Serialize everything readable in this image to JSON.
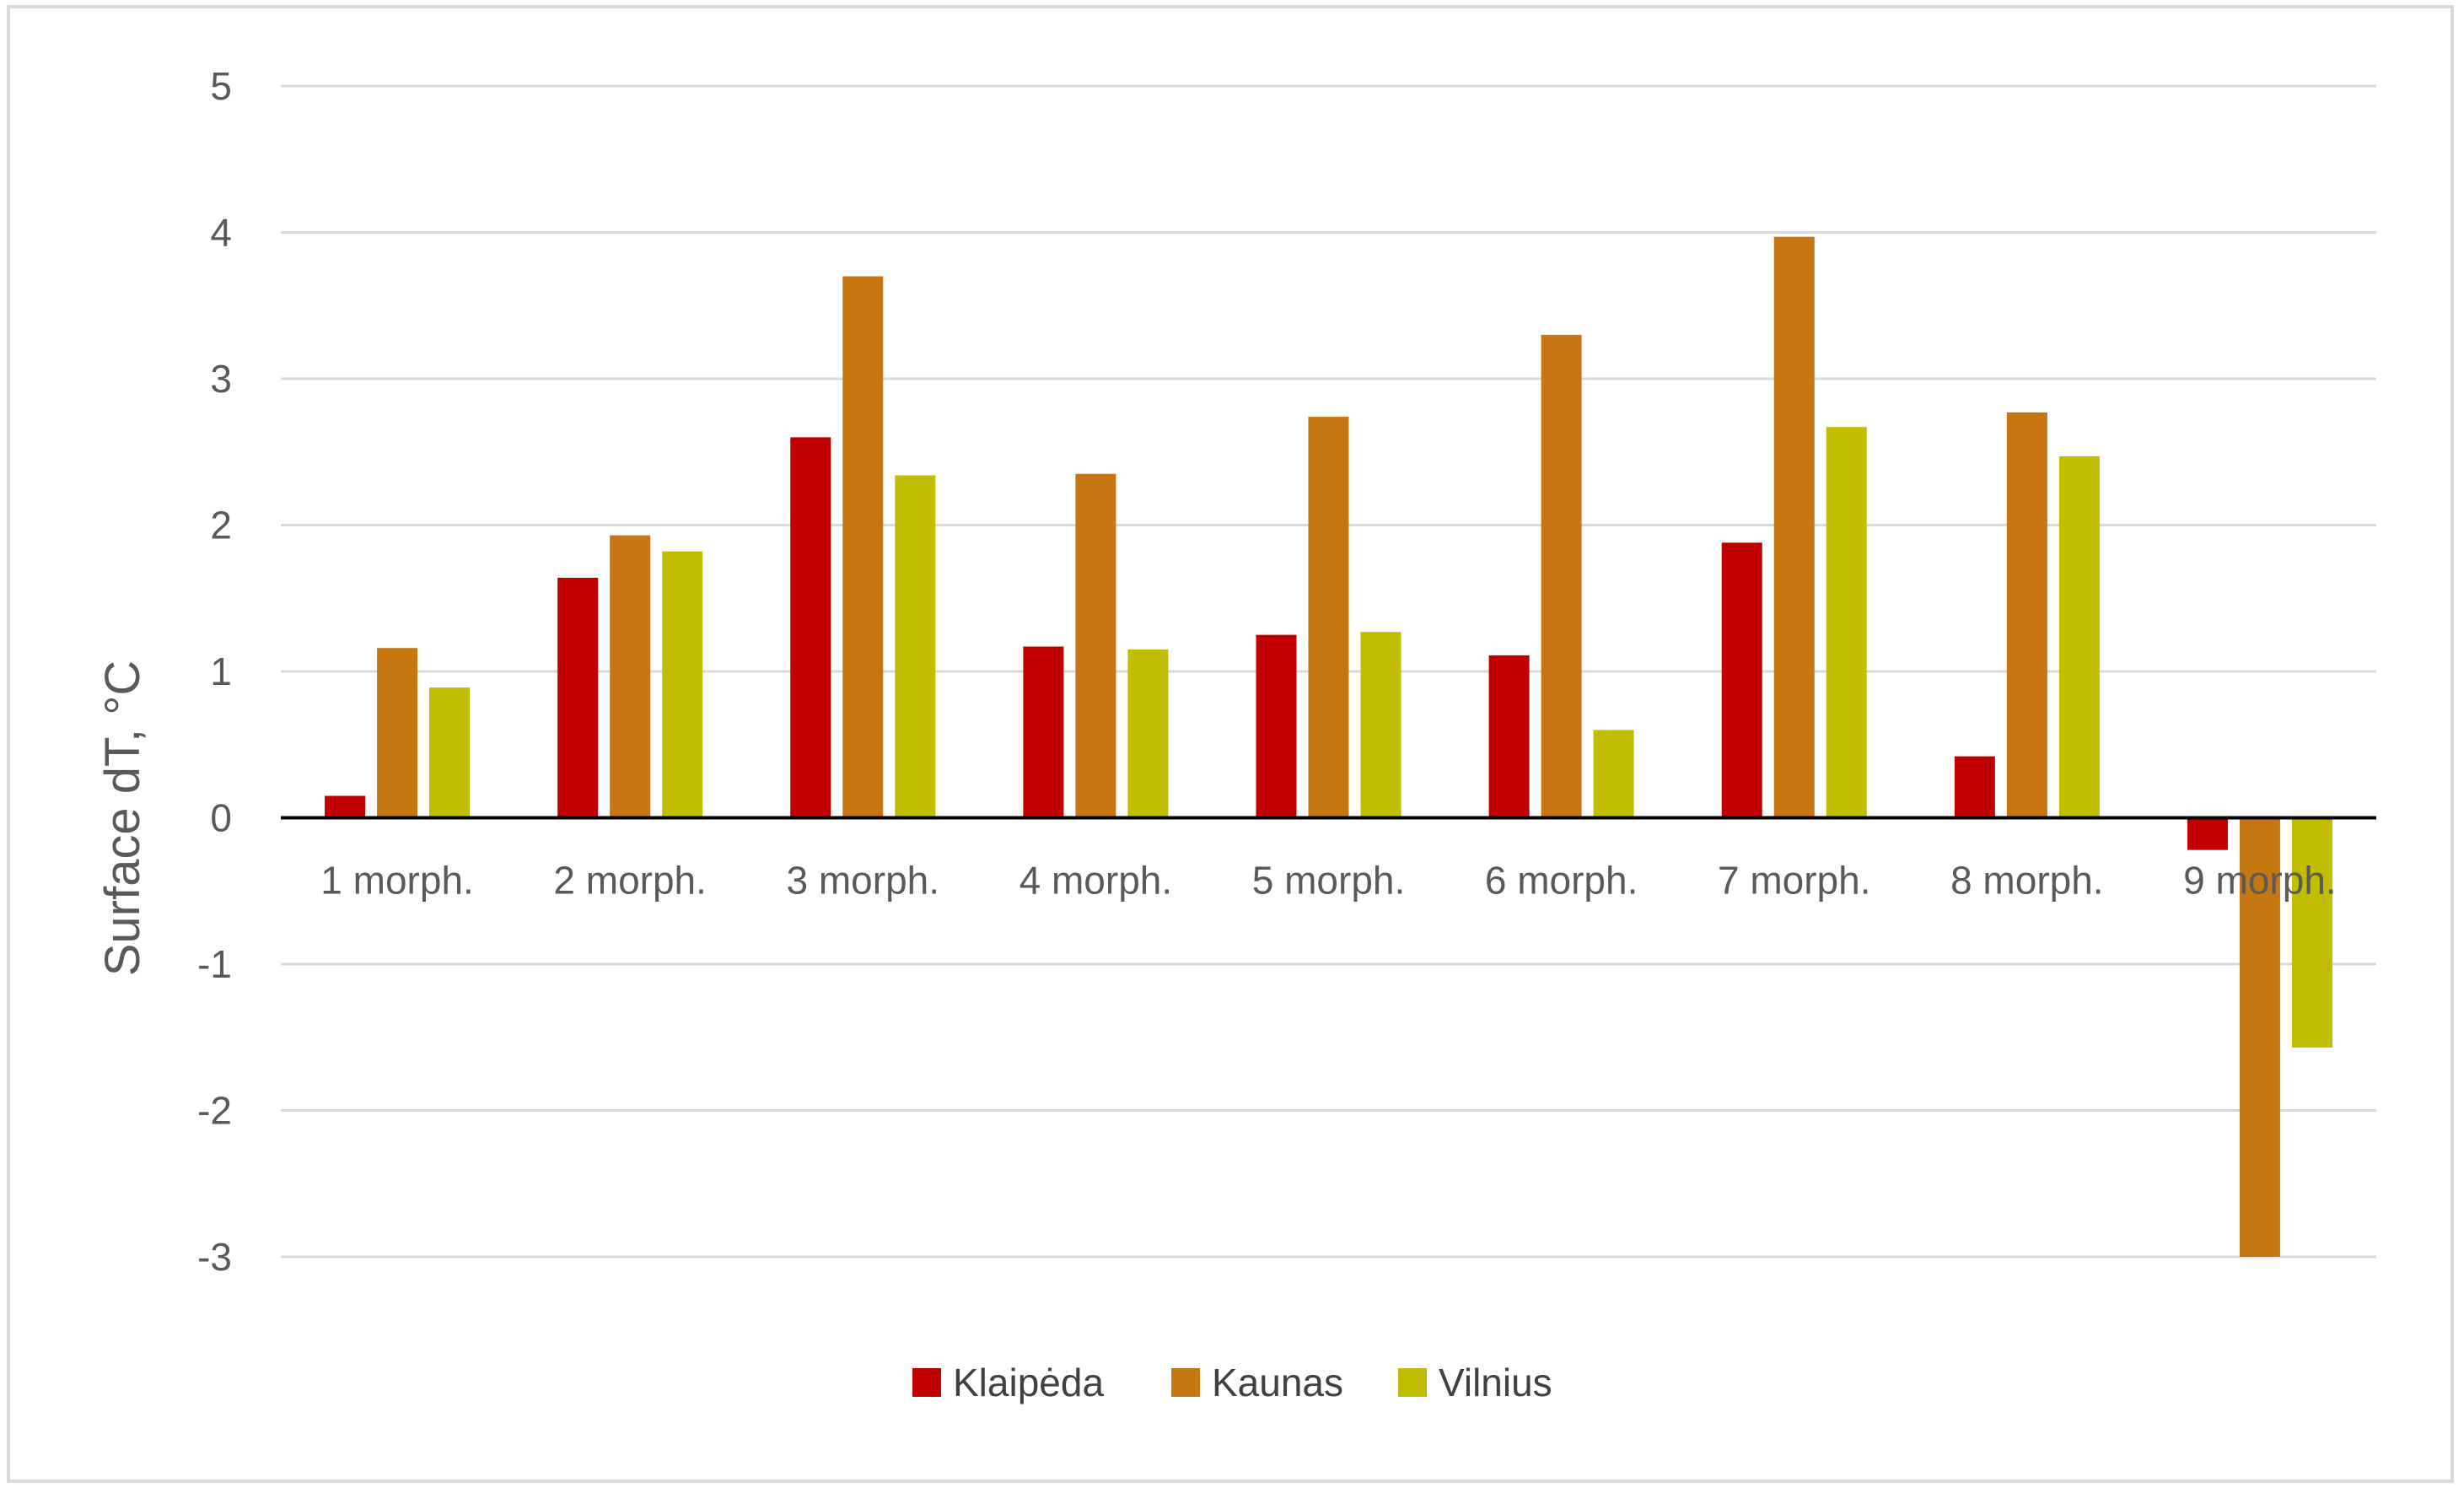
{
  "chart_data": {
    "type": "bar",
    "categories": [
      "1 morph.",
      "2 morph.",
      "3 morph.",
      "4 morph.",
      "5 morph.",
      "6 morph.",
      "7 morph.",
      "8 morph.",
      "9 morph."
    ],
    "series": [
      {
        "name": "Klaipėda",
        "color": "#c00000",
        "values": [
          0.15,
          1.64,
          2.6,
          1.17,
          1.25,
          1.11,
          1.88,
          0.42,
          -0.22
        ]
      },
      {
        "name": "Kaunas",
        "color": "#c77712",
        "values": [
          1.16,
          1.93,
          3.7,
          2.35,
          2.74,
          3.3,
          3.97,
          2.77,
          -3.0
        ]
      },
      {
        "name": "Vilnius",
        "color": "#c3bd00",
        "values": [
          0.89,
          1.82,
          2.34,
          1.15,
          1.27,
          0.6,
          2.67,
          2.47,
          -1.57
        ]
      }
    ],
    "title": "",
    "xlabel": "",
    "ylabel": "Surface dT, °C",
    "ylim": [
      -3,
      5
    ],
    "yticks": [
      "-3",
      "-2",
      "-1",
      "0",
      "1",
      "2",
      "3",
      "4",
      "5"
    ],
    "grid": true,
    "legend_position": "bottom"
  }
}
